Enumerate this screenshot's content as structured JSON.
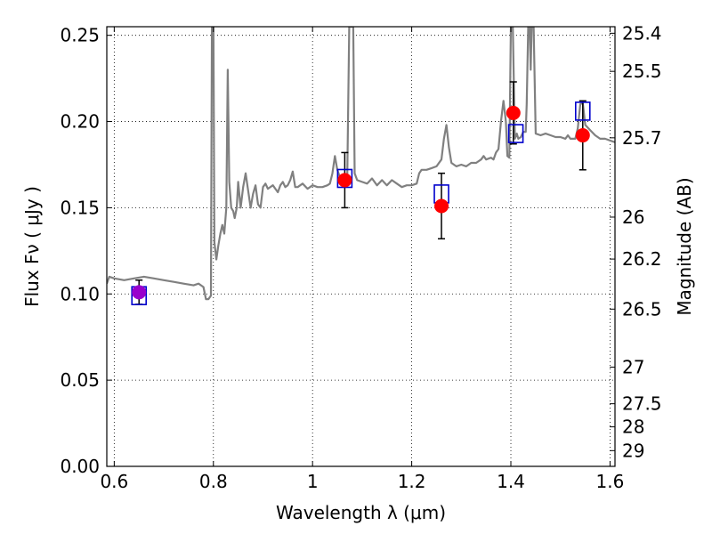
{
  "chart_data": {
    "type": "line",
    "xlabel": "Wavelength  λ (μm)",
    "ylabel": "Flux  Fν  ( μJy )",
    "y2label": "Magnitude (AB)",
    "xlim": [
      0.585,
      1.61
    ],
    "ylim": [
      0.0,
      0.255
    ],
    "grid": true,
    "x_ticks": [
      {
        "v": 0.6,
        "label": "0.6"
      },
      {
        "v": 0.8,
        "label": "0.8"
      },
      {
        "v": 1.0,
        "label": "1"
      },
      {
        "v": 1.2,
        "label": "1.2"
      },
      {
        "v": 1.4,
        "label": "1.4"
      },
      {
        "v": 1.6,
        "label": "1.6"
      }
    ],
    "y_ticks": [
      {
        "v": 0.0,
        "label": "0.00"
      },
      {
        "v": 0.05,
        "label": "0.05"
      },
      {
        "v": 0.1,
        "label": "0.10"
      },
      {
        "v": 0.15,
        "label": "0.15"
      },
      {
        "v": 0.2,
        "label": "0.20"
      },
      {
        "v": 0.25,
        "label": "0.25"
      }
    ],
    "y2_ticks": [
      {
        "mag": 25.4,
        "label": "25.4"
      },
      {
        "mag": 25.5,
        "label": "25.5"
      },
      {
        "mag": 25.7,
        "label": "25.7"
      },
      {
        "mag": 26.0,
        "label": "26"
      },
      {
        "mag": 26.2,
        "label": "26.2"
      },
      {
        "mag": 26.5,
        "label": "26.5"
      },
      {
        "mag": 27.0,
        "label": "27"
      },
      {
        "mag": 27.5,
        "label": "27.5"
      },
      {
        "mag": 28.0,
        "label": "28"
      },
      {
        "mag": 29.0,
        "label": "29"
      }
    ],
    "model_spectrum": {
      "color": "#808080",
      "points": [
        [
          0.585,
          0.106
        ],
        [
          0.59,
          0.11
        ],
        [
          0.6,
          0.109
        ],
        [
          0.62,
          0.108
        ],
        [
          0.64,
          0.109
        ],
        [
          0.66,
          0.11
        ],
        [
          0.68,
          0.109
        ],
        [
          0.7,
          0.108
        ],
        [
          0.72,
          0.107
        ],
        [
          0.74,
          0.106
        ],
        [
          0.76,
          0.105
        ],
        [
          0.77,
          0.106
        ],
        [
          0.78,
          0.104
        ],
        [
          0.785,
          0.097
        ],
        [
          0.79,
          0.097
        ],
        [
          0.795,
          0.099
        ],
        [
          0.797,
          0.255
        ],
        [
          0.8,
          0.255
        ],
        [
          0.802,
          0.13
        ],
        [
          0.806,
          0.12
        ],
        [
          0.81,
          0.128
        ],
        [
          0.814,
          0.135
        ],
        [
          0.818,
          0.14
        ],
        [
          0.822,
          0.135
        ],
        [
          0.826,
          0.15
        ],
        [
          0.829,
          0.23
        ],
        [
          0.832,
          0.165
        ],
        [
          0.836,
          0.15
        ],
        [
          0.84,
          0.148
        ],
        [
          0.843,
          0.144
        ],
        [
          0.847,
          0.15
        ],
        [
          0.85,
          0.165
        ],
        [
          0.855,
          0.15
        ],
        [
          0.86,
          0.162
        ],
        [
          0.865,
          0.17
        ],
        [
          0.87,
          0.16
        ],
        [
          0.875,
          0.15
        ],
        [
          0.88,
          0.158
        ],
        [
          0.885,
          0.163
        ],
        [
          0.89,
          0.152
        ],
        [
          0.895,
          0.15
        ],
        [
          0.9,
          0.162
        ],
        [
          0.905,
          0.164
        ],
        [
          0.91,
          0.161
        ],
        [
          0.92,
          0.163
        ],
        [
          0.925,
          0.161
        ],
        [
          0.93,
          0.159
        ],
        [
          0.935,
          0.163
        ],
        [
          0.94,
          0.165
        ],
        [
          0.945,
          0.162
        ],
        [
          0.95,
          0.163
        ],
        [
          0.955,
          0.166
        ],
        [
          0.96,
          0.171
        ],
        [
          0.965,
          0.162
        ],
        [
          0.97,
          0.162
        ],
        [
          0.98,
          0.164
        ],
        [
          0.99,
          0.161
        ],
        [
          1.0,
          0.163
        ],
        [
          1.01,
          0.162
        ],
        [
          1.02,
          0.162
        ],
        [
          1.03,
          0.163
        ],
        [
          1.035,
          0.164
        ],
        [
          1.04,
          0.17
        ],
        [
          1.045,
          0.18
        ],
        [
          1.05,
          0.172
        ],
        [
          1.055,
          0.168
        ],
        [
          1.06,
          0.165
        ],
        [
          1.065,
          0.164
        ],
        [
          1.07,
          0.168
        ],
        [
          1.074,
          0.255
        ],
        [
          1.082,
          0.255
        ],
        [
          1.085,
          0.17
        ],
        [
          1.09,
          0.166
        ],
        [
          1.1,
          0.165
        ],
        [
          1.11,
          0.164
        ],
        [
          1.12,
          0.167
        ],
        [
          1.13,
          0.163
        ],
        [
          1.14,
          0.166
        ],
        [
          1.15,
          0.163
        ],
        [
          1.16,
          0.166
        ],
        [
          1.17,
          0.164
        ],
        [
          1.18,
          0.162
        ],
        [
          1.19,
          0.163
        ],
        [
          1.2,
          0.163
        ],
        [
          1.21,
          0.164
        ],
        [
          1.215,
          0.17
        ],
        [
          1.22,
          0.172
        ],
        [
          1.23,
          0.172
        ],
        [
          1.24,
          0.173
        ],
        [
          1.25,
          0.174
        ],
        [
          1.26,
          0.178
        ],
        [
          1.265,
          0.19
        ],
        [
          1.27,
          0.198
        ],
        [
          1.275,
          0.185
        ],
        [
          1.28,
          0.176
        ],
        [
          1.29,
          0.174
        ],
        [
          1.3,
          0.175
        ],
        [
          1.31,
          0.174
        ],
        [
          1.32,
          0.176
        ],
        [
          1.33,
          0.176
        ],
        [
          1.34,
          0.178
        ],
        [
          1.345,
          0.18
        ],
        [
          1.35,
          0.178
        ],
        [
          1.36,
          0.179
        ],
        [
          1.365,
          0.178
        ],
        [
          1.37,
          0.182
        ],
        [
          1.375,
          0.184
        ],
        [
          1.38,
          0.2
        ],
        [
          1.385,
          0.212
        ],
        [
          1.39,
          0.2
        ],
        [
          1.393,
          0.18
        ],
        [
          1.397,
          0.179
        ],
        [
          1.4,
          0.255
        ],
        [
          1.404,
          0.255
        ],
        [
          1.408,
          0.19
        ],
        [
          1.412,
          0.193
        ],
        [
          1.415,
          0.19
        ],
        [
          1.42,
          0.191
        ],
        [
          1.425,
          0.194
        ],
        [
          1.43,
          0.194
        ],
        [
          1.432,
          0.21
        ],
        [
          1.435,
          0.255
        ],
        [
          1.438,
          0.255
        ],
        [
          1.44,
          0.23
        ],
        [
          1.442,
          0.255
        ],
        [
          1.446,
          0.255
        ],
        [
          1.45,
          0.193
        ],
        [
          1.46,
          0.192
        ],
        [
          1.47,
          0.193
        ],
        [
          1.48,
          0.192
        ],
        [
          1.49,
          0.191
        ],
        [
          1.5,
          0.191
        ],
        [
          1.51,
          0.19
        ],
        [
          1.515,
          0.192
        ],
        [
          1.52,
          0.19
        ],
        [
          1.53,
          0.19
        ],
        [
          1.535,
          0.196
        ],
        [
          1.54,
          0.21
        ],
        [
          1.545,
          0.211
        ],
        [
          1.55,
          0.198
        ],
        [
          1.56,
          0.195
        ],
        [
          1.57,
          0.192
        ],
        [
          1.58,
          0.19
        ],
        [
          1.59,
          0.19
        ],
        [
          1.6,
          0.189
        ],
        [
          1.61,
          0.188
        ]
      ]
    },
    "series": [
      {
        "type": "errorbar",
        "marker": "circle",
        "points": [
          {
            "x": 0.65,
            "y": 0.101,
            "err": 0.007,
            "color": "#9900cc"
          },
          {
            "x": 1.065,
            "y": 0.166,
            "err": 0.016,
            "color": "#ff0000"
          },
          {
            "x": 1.26,
            "y": 0.151,
            "err": 0.019,
            "color": "#ff0000"
          },
          {
            "x": 1.405,
            "y": 0.205,
            "err": 0.018,
            "color": "#ff0000"
          },
          {
            "x": 1.545,
            "y": 0.192,
            "err": 0.02,
            "color": "#ff0000"
          }
        ]
      },
      {
        "type": "scatter",
        "marker": "open-square",
        "color": "#0000cc",
        "points": [
          {
            "x": 0.65,
            "y": 0.099
          },
          {
            "x": 1.065,
            "y": 0.167
          },
          {
            "x": 1.26,
            "y": 0.158
          },
          {
            "x": 1.41,
            "y": 0.193
          },
          {
            "x": 1.545,
            "y": 0.206
          }
        ]
      }
    ]
  }
}
